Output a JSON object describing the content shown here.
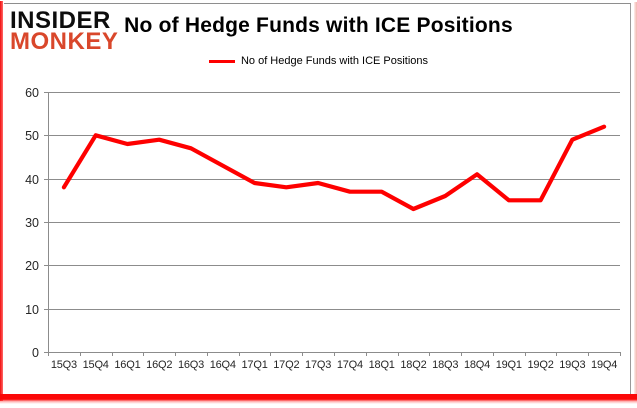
{
  "logo": {
    "line1": "INSIDER",
    "line2": "MONKEY"
  },
  "header": {
    "title": "No of Hedge Funds with ICE Positions"
  },
  "legend": {
    "label": "No of Hedge Funds with ICE Positions"
  },
  "colors": {
    "line": "#fe0000",
    "grid": "#8c8c8c",
    "axis": "#8c8c8c",
    "axis_text": "#262626",
    "logo_black": "#0d0d0d",
    "logo_red": "#d9472b",
    "frame_red": "#fb0808"
  },
  "chart_data": {
    "type": "line",
    "title": "No of Hedge Funds with ICE Positions",
    "categories": [
      "15Q3",
      "15Q4",
      "16Q1",
      "16Q2",
      "16Q3",
      "16Q4",
      "17Q1",
      "17Q2",
      "17Q3",
      "17Q4",
      "18Q1",
      "18Q2",
      "18Q3",
      "18Q4",
      "19Q1",
      "19Q2",
      "19Q3",
      "19Q4"
    ],
    "series": [
      {
        "name": "No of Hedge Funds with ICE Positions",
        "values": [
          38,
          50,
          48,
          49,
          47,
          43,
          39,
          38,
          39,
          37,
          37,
          33,
          36,
          41,
          35,
          35,
          49,
          52
        ]
      }
    ],
    "xlabel": "",
    "ylabel": "",
    "ylim": [
      0,
      60
    ],
    "ytick_step": 10,
    "grid": true,
    "legend_position": "top-center"
  }
}
